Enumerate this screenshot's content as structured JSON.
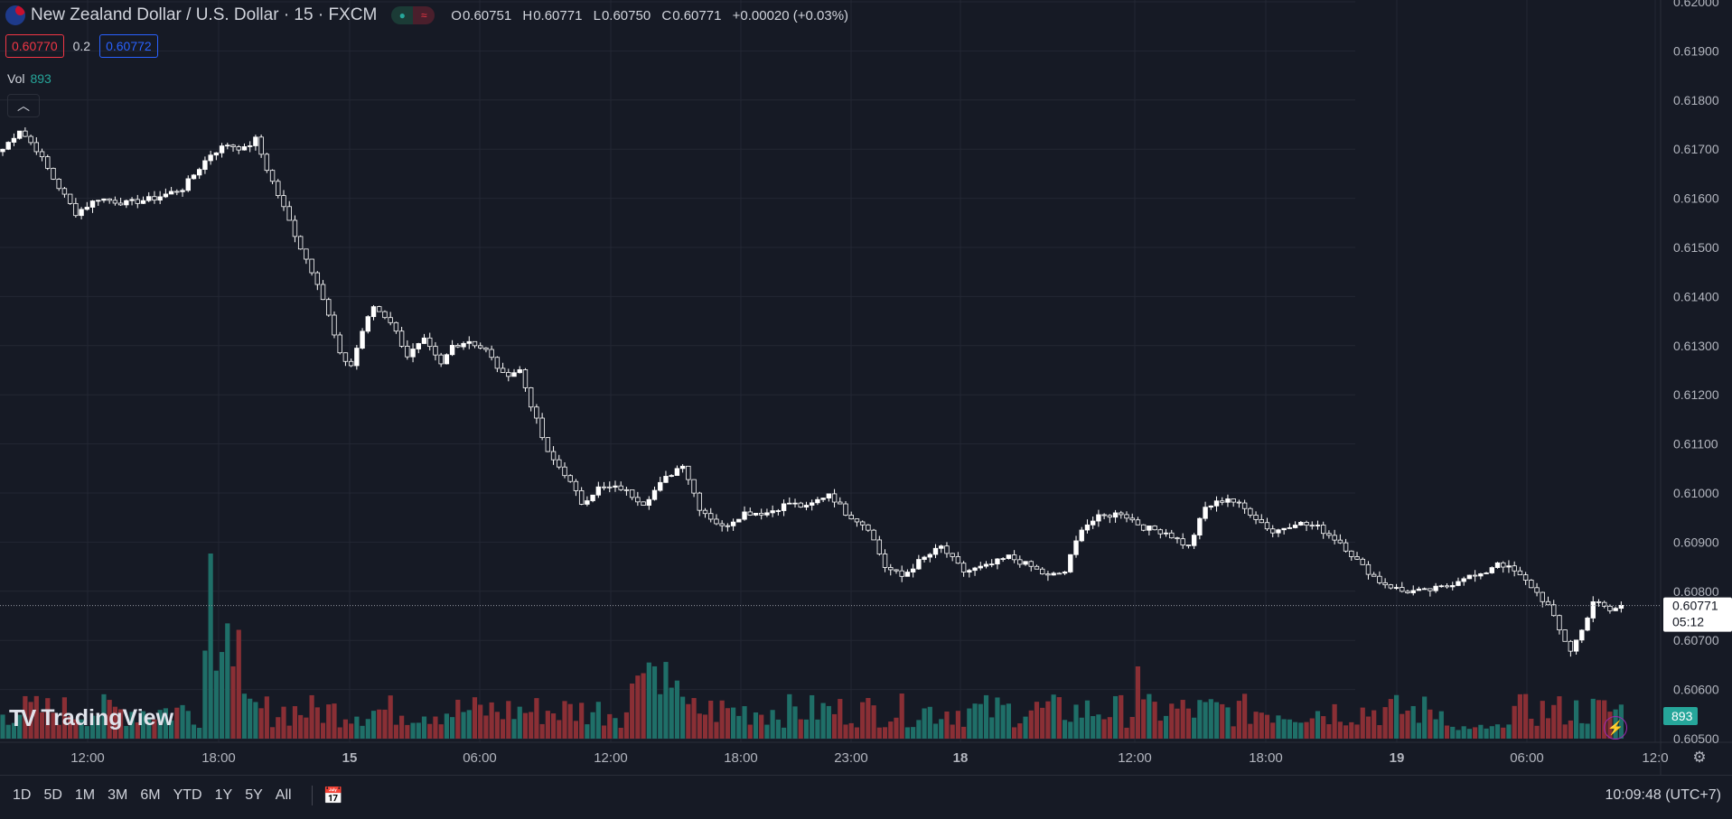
{
  "header": {
    "symbol_title": "New Zealand Dollar / U.S. Dollar · 15 · FXCM",
    "status_dot_icon": "market-open-dot-icon",
    "ohlc": {
      "o_label": "O",
      "o": "0.60751",
      "h_label": "H",
      "h": "0.60771",
      "l_label": "L",
      "l": "0.60750",
      "c_label": "C",
      "c": "0.60771",
      "change": "+0.00020 (+0.03%)"
    }
  },
  "quote": {
    "sell": "0.60770",
    "spread": "0.2",
    "buy": "0.60772"
  },
  "volume_legend": {
    "label": "Vol",
    "value": "893"
  },
  "collapse_icon": "chevron-up-icon",
  "branding": {
    "logo_mark": "TV",
    "logo_text": "TradingView"
  },
  "price_axis": {
    "ticks": [
      "0.62000",
      "0.61900",
      "0.61800",
      "0.61700",
      "0.61600",
      "0.61500",
      "0.61400",
      "0.61300",
      "0.61200",
      "0.61100",
      "0.61000",
      "0.60900",
      "0.60800",
      "0.60700",
      "0.60600",
      "0.60500"
    ],
    "current_price": "0.60771",
    "countdown": "05:12",
    "volume_badge": "893"
  },
  "time_axis": {
    "labels": [
      "12:00",
      "18:00",
      "15",
      "06:00",
      "12:00",
      "18:00",
      "23:00",
      "18",
      "12:00",
      "18:00",
      "19",
      "06:00",
      "12:0"
    ],
    "bold_labels": [
      "15",
      "18",
      "19"
    ]
  },
  "bottom_bar": {
    "ranges": [
      "1D",
      "5D",
      "1M",
      "3M",
      "6M",
      "YTD",
      "1Y",
      "5Y",
      "All"
    ],
    "calendar_icon": "calendar-icon",
    "clock": "10:09:48 (UTC+7)"
  },
  "colors": {
    "up": "#ffffff",
    "down": "#ffffff",
    "vol_up": "#1f6f68",
    "vol_down": "#8a2f35",
    "background": "#161a25"
  },
  "chart_data": {
    "type": "candlestick",
    "title": "New Zealand Dollar / U.S. Dollar · 15 · FXCM",
    "xlabel": "",
    "ylabel": "",
    "ylim": [
      0.605,
      0.62
    ],
    "grid": true,
    "x_labels": [
      "12:00",
      "18:00",
      "15",
      "06:00",
      "12:00",
      "18:00",
      "23:00",
      "18",
      "12:00",
      "18:00",
      "19",
      "06:00"
    ],
    "close_path": [
      [
        0,
        0.617
      ],
      [
        3,
        0.6174
      ],
      [
        6,
        0.617
      ],
      [
        9,
        0.6164
      ],
      [
        13,
        0.6157
      ],
      [
        17,
        0.616
      ],
      [
        22,
        0.6159
      ],
      [
        27,
        0.616
      ],
      [
        32,
        0.6162
      ],
      [
        37,
        0.6169
      ],
      [
        40,
        0.6171
      ],
      [
        43,
        0.617
      ],
      [
        45,
        0.6172
      ],
      [
        47,
        0.6166
      ],
      [
        50,
        0.6158
      ],
      [
        53,
        0.615
      ],
      [
        56,
        0.6143
      ],
      [
        58,
        0.6136
      ],
      [
        60,
        0.6128
      ],
      [
        62,
        0.6126
      ],
      [
        64,
        0.6133
      ],
      [
        66,
        0.6138
      ],
      [
        69,
        0.6135
      ],
      [
        72,
        0.6128
      ],
      [
        75,
        0.6131
      ],
      [
        78,
        0.6126
      ],
      [
        80,
        0.613
      ],
      [
        83,
        0.6131
      ],
      [
        86,
        0.6129
      ],
      [
        89,
        0.6124
      ],
      [
        92,
        0.6125
      ],
      [
        94,
        0.6118
      ],
      [
        97,
        0.6108
      ],
      [
        100,
        0.6104
      ],
      [
        103,
        0.6098
      ],
      [
        106,
        0.6101
      ],
      [
        110,
        0.6101
      ],
      [
        114,
        0.6098
      ],
      [
        118,
        0.6103
      ],
      [
        121,
        0.6106
      ],
      [
        124,
        0.6097
      ],
      [
        128,
        0.6093
      ],
      [
        132,
        0.6096
      ],
      [
        136,
        0.6096
      ],
      [
        140,
        0.6098
      ],
      [
        143,
        0.6097
      ],
      [
        147,
        0.61
      ],
      [
        150,
        0.6096
      ],
      [
        154,
        0.6093
      ],
      [
        157,
        0.6085
      ],
      [
        160,
        0.6083
      ],
      [
        163,
        0.6086
      ],
      [
        167,
        0.6089
      ],
      [
        171,
        0.6084
      ],
      [
        175,
        0.6085
      ],
      [
        179,
        0.6087
      ],
      [
        183,
        0.6085
      ],
      [
        186,
        0.6083
      ],
      [
        189,
        0.6084
      ],
      [
        192,
        0.6093
      ],
      [
        195,
        0.6095
      ],
      [
        199,
        0.6096
      ],
      [
        203,
        0.6093
      ],
      [
        207,
        0.6092
      ],
      [
        211,
        0.6089
      ],
      [
        214,
        0.6097
      ],
      [
        218,
        0.6099
      ],
      [
        222,
        0.6096
      ],
      [
        226,
        0.6092
      ],
      [
        230,
        0.6094
      ],
      [
        234,
        0.6093
      ],
      [
        238,
        0.609
      ],
      [
        242,
        0.6085
      ],
      [
        245,
        0.6082
      ],
      [
        249,
        0.608
      ],
      [
        253,
        0.608
      ],
      [
        257,
        0.6081
      ],
      [
        260,
        0.6083
      ],
      [
        263,
        0.6083
      ],
      [
        266,
        0.6086
      ],
      [
        269,
        0.6084
      ],
      [
        272,
        0.6081
      ],
      [
        275,
        0.6077
      ],
      [
        277,
        0.6072
      ],
      [
        279,
        0.6068
      ],
      [
        281,
        0.6072
      ],
      [
        283,
        0.6078
      ],
      [
        286,
        0.6076
      ],
      [
        288,
        0.6077
      ]
    ],
    "volume_series": "per-bar volume histogram, peak near 18:00 on day 1"
  }
}
